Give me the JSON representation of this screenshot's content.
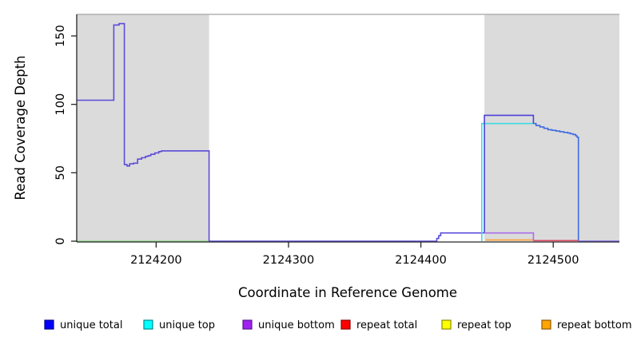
{
  "chart_data": {
    "type": "line",
    "title": "",
    "xlabel": "Coordinate in Reference Genome",
    "ylabel": "Read Coverage Depth",
    "xlim": [
      2124140,
      2124550
    ],
    "ylim": [
      0,
      166
    ],
    "x_ticks": [
      2124200,
      2124300,
      2124400,
      2124500
    ],
    "y_ticks": [
      0,
      50,
      100,
      150
    ],
    "grid": false,
    "shade_color": "#DBDBDB",
    "shade_top_border_color": "#A3A3A3",
    "shaded_regions": [
      {
        "name": "left-masked-region",
        "x0": 2124140,
        "x1": 2124240
      },
      {
        "name": "right-masked-region",
        "x0": 2124448,
        "x1": 2124550
      }
    ],
    "legend_position": "bottom",
    "legend": [
      {
        "label": "unique total",
        "fill": "#0000FF",
        "border": "#00008B"
      },
      {
        "label": "unique top",
        "fill": "#00FFFF",
        "border": "#008B8B"
      },
      {
        "label": "unique bottom",
        "fill": "#A020F0",
        "border": "#551A8B"
      },
      {
        "label": "repeat total",
        "fill": "#FF0000",
        "border": "#8B0000"
      },
      {
        "label": "repeat top",
        "fill": "#FFFF00",
        "border": "#8B8B00"
      },
      {
        "label": "repeat bottom",
        "fill": "#FFA500",
        "border": "#8B5A00"
      }
    ],
    "series": [
      {
        "name": "baseline-left-green",
        "legend": "unique top + repeat top overlap",
        "color": "#8FD88F",
        "points": [
          [
            2124140,
            0
          ],
          [
            2124240,
            0
          ]
        ]
      },
      {
        "name": "unique-total-left",
        "legend": "unique total",
        "color": "#5B4BD9",
        "points": [
          [
            2124140,
            103
          ],
          [
            2124168,
            103
          ],
          [
            2124168,
            158
          ],
          [
            2124172,
            158
          ],
          [
            2124172,
            159
          ],
          [
            2124176,
            159
          ],
          [
            2124176,
            56
          ],
          [
            2124178,
            56
          ],
          [
            2124178,
            55
          ],
          [
            2124180,
            55
          ],
          [
            2124180,
            56.5
          ],
          [
            2124183,
            56.5
          ],
          [
            2124183,
            57
          ],
          [
            2124186,
            57
          ],
          [
            2124186,
            60
          ],
          [
            2124189,
            60
          ],
          [
            2124189,
            61
          ],
          [
            2124192,
            61
          ],
          [
            2124192,
            62
          ],
          [
            2124194,
            62
          ],
          [
            2124194,
            62.5
          ],
          [
            2124196,
            62.5
          ],
          [
            2124196,
            63.5
          ],
          [
            2124199,
            63.5
          ],
          [
            2124199,
            64.5
          ],
          [
            2124202,
            64.5
          ],
          [
            2124202,
            65.5
          ],
          [
            2124204,
            65.5
          ],
          [
            2124204,
            66
          ],
          [
            2124240,
            66
          ],
          [
            2124240,
            0
          ],
          [
            2124412,
            0
          ],
          [
            2124412,
            2
          ],
          [
            2124413.5,
            2
          ],
          [
            2124413.5,
            4
          ],
          [
            2124415,
            4
          ],
          [
            2124415,
            6
          ],
          [
            2124448,
            6
          ]
        ]
      },
      {
        "name": "unique-top-right",
        "legend": "unique top",
        "color": "#3FDBE2",
        "points": [
          [
            2124446,
            0
          ],
          [
            2124446,
            86
          ],
          [
            2124485,
            86
          ]
        ]
      },
      {
        "name": "unique-total-right-plateau",
        "legend": "unique total",
        "color": "#4B40D9",
        "points": [
          [
            2124448,
            6
          ],
          [
            2124448,
            92
          ],
          [
            2124485,
            92
          ],
          [
            2124485,
            86
          ]
        ]
      },
      {
        "name": "unique-total-right-steps",
        "legend": "unique total",
        "color": "#3F6BE0",
        "points": [
          [
            2124485,
            86
          ],
          [
            2124487,
            86
          ],
          [
            2124487,
            84.5
          ],
          [
            2124490,
            84.5
          ],
          [
            2124490,
            83.5
          ],
          [
            2124493,
            83.5
          ],
          [
            2124493,
            82.5
          ],
          [
            2124496,
            82.5
          ],
          [
            2124496,
            81.5
          ],
          [
            2124499,
            81.5
          ],
          [
            2124499,
            81
          ],
          [
            2124502,
            81
          ],
          [
            2124502,
            80.5
          ],
          [
            2124505,
            80.5
          ],
          [
            2124505,
            80
          ],
          [
            2124508,
            80
          ],
          [
            2124508,
            79.5
          ],
          [
            2124511,
            79.5
          ],
          [
            2124511,
            79
          ],
          [
            2124513,
            79
          ],
          [
            2124513,
            78.5
          ],
          [
            2124515,
            78.5
          ],
          [
            2124515,
            78
          ],
          [
            2124517,
            78
          ],
          [
            2124517,
            77
          ],
          [
            2124518,
            77
          ],
          [
            2124518,
            76
          ],
          [
            2124519,
            76
          ],
          [
            2124519,
            0
          ]
        ]
      },
      {
        "name": "repeat-bottom-right",
        "legend": "repeat bottom",
        "color": "#FF9D2E",
        "points": [
          [
            2124449,
            0.9
          ],
          [
            2124485,
            0.9
          ]
        ]
      },
      {
        "name": "repeat-total-right",
        "legend": "repeat total",
        "color": "#D94A62",
        "points": [
          [
            2124485,
            0.4
          ],
          [
            2124519,
            0.4
          ]
        ]
      },
      {
        "name": "unique-bottom-right",
        "legend": "unique bottom",
        "color": "#A96FE8",
        "points": [
          [
            2124448,
            6
          ],
          [
            2124485,
            6
          ],
          [
            2124485,
            0.2
          ]
        ]
      },
      {
        "name": "baseline-right",
        "legend": "unique total + unique bottom overlap",
        "color": "#7465E2",
        "points": [
          [
            2124519,
            0
          ],
          [
            2124550,
            0
          ]
        ]
      }
    ]
  }
}
